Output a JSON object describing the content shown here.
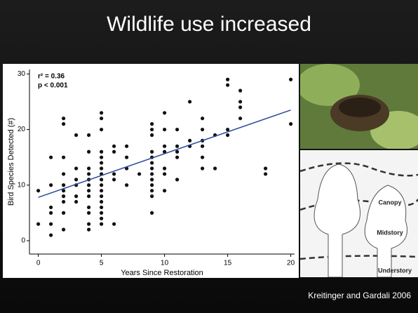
{
  "slide": {
    "title": "Wildlife use increased",
    "citation": "Kreitinger and Gardali 2006"
  },
  "diagram": {
    "labels": [
      "Canopy",
      "Midstory",
      "Understory"
    ]
  },
  "chart_data": {
    "type": "scatter",
    "xlabel": "Years Since Restoration",
    "ylabel": "Bird Species Detected (#)",
    "annotations": [
      "r² = 0.36",
      "p < 0.001"
    ],
    "color": "#111111",
    "x": [
      0,
      0,
      1,
      1,
      1,
      1,
      1,
      1,
      2,
      2,
      2,
      2,
      2,
      2,
      2,
      2,
      2,
      2,
      3,
      3,
      3,
      3,
      3,
      3,
      4,
      4,
      4,
      4,
      4,
      4,
      4,
      4,
      4,
      4,
      4,
      4,
      5,
      5,
      5,
      5,
      5,
      5,
      5,
      5,
      5,
      5,
      5,
      5,
      5,
      5,
      5,
      5,
      5,
      6,
      6,
      6,
      6,
      6,
      7,
      7,
      7,
      7,
      8,
      9,
      9,
      9,
      9,
      9,
      9,
      9,
      9,
      9,
      9,
      9,
      9,
      9,
      10,
      10,
      10,
      10,
      10,
      10,
      10,
      11,
      11,
      11,
      11,
      11,
      12,
      12,
      12,
      13,
      13,
      13,
      13,
      13,
      13,
      14,
      14,
      15,
      15,
      15,
      15,
      16,
      16,
      16,
      16,
      18,
      18,
      20,
      20
    ],
    "values": [
      3,
      9,
      1,
      3,
      5,
      6,
      10,
      15,
      2,
      5,
      7,
      8,
      9,
      10,
      12,
      15,
      21,
      22,
      7,
      8,
      10,
      11,
      13,
      19,
      2,
      3,
      5,
      6,
      8,
      9,
      10,
      11,
      12,
      13,
      16,
      19,
      3,
      4,
      5,
      6,
      7,
      8,
      9,
      10,
      11,
      12,
      13,
      14,
      15,
      16,
      20,
      22,
      23,
      3,
      11,
      12,
      16,
      17,
      10,
      13,
      15,
      17,
      12,
      5,
      8,
      9,
      10,
      11,
      12,
      13,
      14,
      15,
      16,
      19,
      20,
      21,
      9,
      12,
      13,
      16,
      17,
      20,
      23,
      11,
      15,
      16,
      17,
      20,
      17,
      18,
      25,
      13,
      15,
      17,
      18,
      20,
      22,
      13,
      19,
      19,
      20,
      28,
      29,
      22,
      24,
      25,
      27,
      12,
      13,
      21,
      29
    ],
    "trend": {
      "x": [
        0,
        20
      ],
      "values": [
        7.8,
        23.5
      ],
      "color": "#2b4a9a"
    },
    "xlim": [
      -0.7,
      20.3
    ],
    "ylim": [
      -2.4,
      30.8
    ],
    "xticks": [
      0,
      5,
      10,
      15,
      20
    ],
    "yticks": [
      0,
      10,
      20,
      30
    ]
  }
}
